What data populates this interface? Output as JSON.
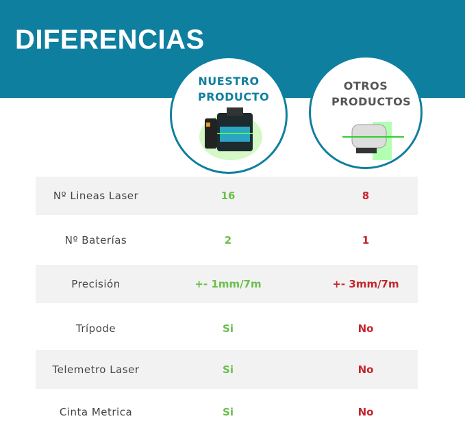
{
  "header": {
    "title": "DIFERENCIAS"
  },
  "columns": [
    {
      "label": "NUESTRO PRODUCTO"
    },
    {
      "label": "OTROS PRODUCTOS"
    }
  ],
  "table": {
    "rows": [
      [
        "Nº Lineas Laser",
        "16",
        "8"
      ],
      [
        "Nº Baterías",
        "2",
        "1"
      ],
      [
        "Precisión",
        "+- 1mm/7m",
        "+- 3mm/7m"
      ],
      [
        "Trípode",
        "Si",
        "No"
      ],
      [
        "Telemetro Laser",
        "Si",
        "No"
      ],
      [
        "Cinta Metrica",
        "Si",
        "No"
      ]
    ]
  }
}
